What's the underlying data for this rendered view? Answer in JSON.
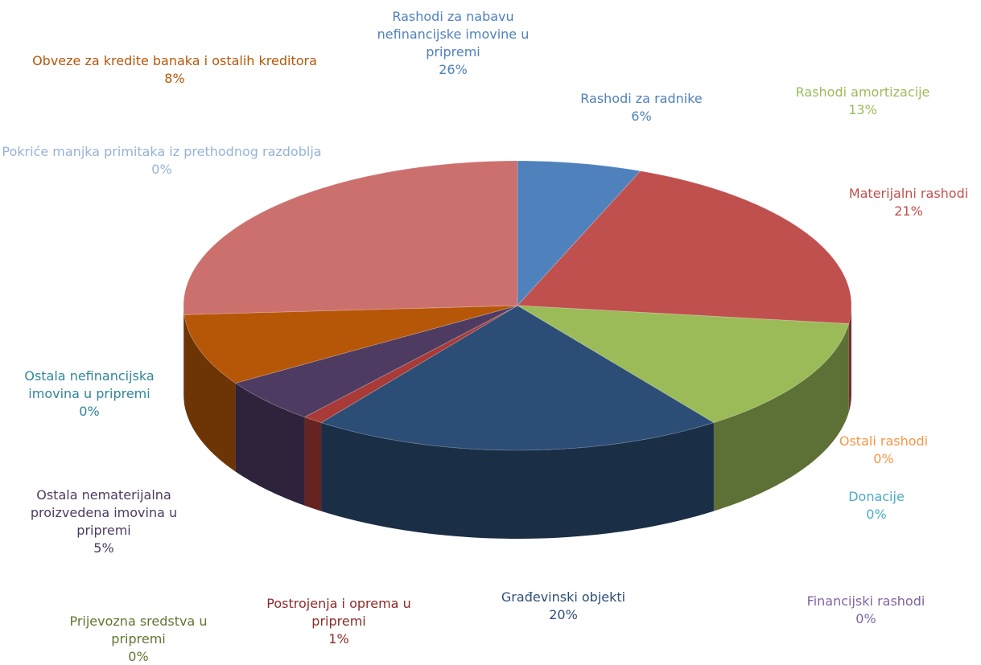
{
  "chart_data": {
    "type": "pie",
    "categories": [
      "Rashodi za radnike",
      "Materijalni rashodi",
      "Rashodi amortizacije",
      "Ostali rashodi",
      "Donacije",
      "Financijski rashodi",
      "Građevinski objekti",
      "Postrojenja i oprema u pripremi",
      "Prijevozna sredstva u pripremi",
      "Ostala nematerijalna proizvedena imovina u pripremi",
      "Ostala nefinancijska imovina u pripremi",
      "Obveze za kredite banaka i ostalih kreditora",
      "Pokriće manjka primitaka iz prethodnog razdoblja",
      "Rashodi za nabavu nefinancijske imovine u pripremi"
    ],
    "values": [
      6,
      21,
      13,
      0,
      0,
      0,
      20,
      1,
      0,
      5,
      0,
      8,
      0,
      26
    ],
    "value_labels": [
      "6%",
      "21%",
      "13%",
      "0%",
      "0%",
      "0%",
      "20%",
      "1%",
      "0%",
      "5%",
      "0%",
      "8%",
      "0%",
      "26%"
    ],
    "colors": [
      "#4f81bd",
      "#c0504d",
      "#9bbb59",
      "#f79646",
      "#4bacc6",
      "#8064a2",
      "#2c4d75",
      "#a83a37",
      "#77933c",
      "#4d3b62",
      "#31859c",
      "#b65708",
      "#95b3d7",
      "#cc706e"
    ],
    "label_colors": [
      "#4f81bd",
      "#c0504d",
      "#9bbb59",
      "#f79646",
      "#4bacc6",
      "#8064a2",
      "#2c4d75",
      "#8c2b28",
      "#5f7530",
      "#4d3b62",
      "#31859c",
      "#b65708",
      "#95b3d7",
      "#4f81bd"
    ]
  }
}
